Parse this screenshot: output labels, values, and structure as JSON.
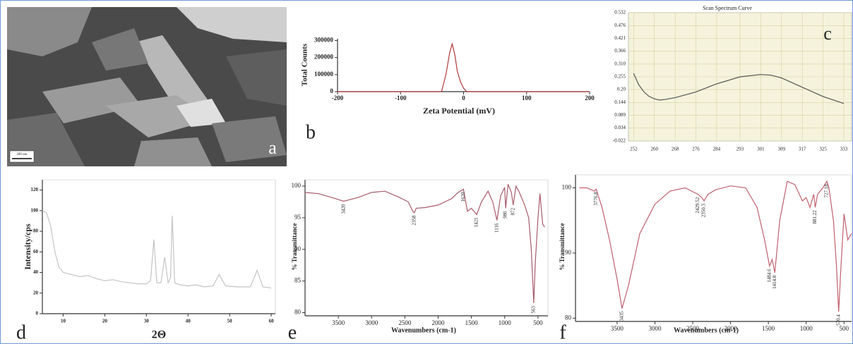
{
  "image_panel": {
    "panel_label": "a",
    "scale_bar": "200 nm"
  },
  "chart_data": [
    {
      "type": "line",
      "panel_label": "b",
      "xlabel": "Zeta Potential (mV)",
      "ylabel": "Total Counts",
      "color": "#b03a3a",
      "x": [
        -200,
        -50,
        -35,
        -28,
        -22,
        -18,
        -14,
        -10,
        -5,
        0,
        5,
        50,
        200
      ],
      "values": [
        0,
        0,
        0,
        100000,
        230000,
        280000,
        220000,
        120000,
        60000,
        20000,
        0,
        0,
        0
      ],
      "xlim": [
        -200,
        200
      ],
      "ylim": [
        0,
        310000
      ],
      "xticks": [
        -200,
        -100,
        0,
        100,
        200
      ],
      "yticks": [
        0,
        100000,
        200000,
        300000
      ],
      "grid": false
    },
    {
      "type": "line",
      "panel_label": "c",
      "title": "Scan Spectrum Curve",
      "color": "#555555",
      "plot_background": "#f5f3dc",
      "grid": true,
      "x": [
        252,
        254,
        256,
        258,
        260,
        262,
        264,
        268,
        276,
        284,
        293,
        301,
        305,
        309,
        317,
        325,
        333
      ],
      "values": [
        0.27,
        0.22,
        0.19,
        0.17,
        0.16,
        0.155,
        0.157,
        0.165,
        0.19,
        0.225,
        0.255,
        0.265,
        0.262,
        0.25,
        0.21,
        0.17,
        0.14
      ],
      "xlim": [
        250,
        336
      ],
      "ylim": [
        -0.022,
        0.532
      ],
      "xticks": [
        252,
        260,
        268,
        276,
        284,
        293,
        301,
        309,
        317,
        325,
        333
      ],
      "yticks": [
        0.532,
        0.476,
        0.421,
        0.366,
        {
          "value": 0.31,
          "label": "0.310"
        },
        0.255,
        {
          "value": 0.2,
          "label": "0.20"
        },
        0.144,
        0.089,
        0.034,
        -0.022
      ]
    },
    {
      "type": "line",
      "panel_label": "d",
      "xlabel": "2Θ",
      "ylabel": "Intensity/cps",
      "color": "#c4c4c4",
      "grid": false,
      "x": [
        5,
        6,
        7,
        8,
        9,
        10,
        12,
        14,
        16,
        18,
        20,
        22,
        24,
        26,
        28,
        30,
        31,
        31.8,
        32.5,
        33.5,
        34.4,
        35.2,
        35.8,
        36.2,
        36.8,
        38,
        40,
        42,
        44,
        46,
        47.5,
        49,
        52,
        55,
        56.6,
        58,
        60
      ],
      "values": [
        100,
        98,
        85,
        60,
        45,
        40,
        38,
        36,
        37,
        34,
        32,
        33,
        31,
        30,
        29,
        29,
        32,
        72,
        30,
        30,
        55,
        30,
        35,
        95,
        30,
        28,
        27,
        28,
        26,
        27,
        38,
        27,
        26,
        26,
        42,
        26,
        25
      ],
      "xlim": [
        5,
        61
      ],
      "ylim": [
        0,
        130
      ],
      "xticks": [
        10,
        20,
        30,
        40,
        50,
        60
      ],
      "yticks": [
        0,
        20,
        40,
        60,
        80,
        100,
        120
      ]
    },
    {
      "type": "line",
      "panel_label": "e",
      "xlabel": "Wavenumbers (cm-1)",
      "ylabel": "% Transmittance",
      "color": "#a85a6a",
      "grid": false,
      "x": [
        4000,
        3800,
        3600,
        3420,
        3200,
        3000,
        2800,
        2600,
        2450,
        2380,
        2358,
        2330,
        2200,
        2000,
        1800,
        1700,
        1620,
        1560,
        1500,
        1421,
        1350,
        1250,
        1180,
        1116,
        1060,
        1000,
        986,
        950,
        900,
        872,
        830,
        780,
        700,
        640,
        600,
        563,
        540,
        500,
        470,
        430,
        400
      ],
      "values": [
        99,
        98.8,
        98.2,
        97.6,
        98.2,
        99,
        99.2,
        98.3,
        97.5,
        96,
        95.8,
        96.5,
        96.6,
        97,
        98,
        99,
        99.5,
        96,
        96.5,
        95.5,
        97.5,
        99.2,
        97.5,
        94.6,
        98.5,
        99.8,
        96.5,
        100.3,
        99,
        97,
        100,
        99,
        97,
        95,
        90,
        81.5,
        88,
        95,
        98.8,
        94,
        93.5
      ],
      "peaks": [
        3420,
        2358,
        1620,
        1421,
        1116,
        986,
        872,
        563
      ],
      "xlim": [
        4000,
        350
      ],
      "ylim": [
        79.5,
        101
      ],
      "xticks": [
        3500,
        3000,
        2500,
        2000,
        1500,
        1000,
        500
      ],
      "yticks": [
        80,
        85,
        90,
        95,
        100
      ]
    },
    {
      "type": "line",
      "panel_label": "f",
      "xlabel": "Wavenumbers (cm-1)",
      "ylabel": "% Transmittance",
      "color": "#c0606e",
      "grid": false,
      "x": [
        4000,
        3900,
        3800,
        3776.8,
        3700,
        3600,
        3500,
        3435,
        3350,
        3200,
        3000,
        2800,
        2600,
        2429.52,
        2380,
        2350.3,
        2300,
        2200,
        2000,
        1800,
        1650,
        1550,
        1484.6,
        1450,
        1414.8,
        1350,
        1250,
        1150,
        1050,
        1000,
        950,
        900,
        881.22,
        850,
        780,
        727.18,
        700,
        640,
        600,
        570.4,
        540,
        500,
        450,
        400
      ],
      "values": [
        100,
        100,
        99.5,
        99.8,
        97,
        92,
        86,
        81.5,
        85,
        93,
        97.5,
        99.5,
        100,
        99,
        98.5,
        98,
        99,
        99.7,
        100.3,
        100,
        97,
        92,
        88,
        89,
        87,
        95,
        101,
        100.5,
        98,
        98.5,
        97,
        99,
        97,
        99,
        100,
        101,
        100,
        95,
        88,
        81,
        88,
        96,
        92,
        93
      ],
      "peaks": [
        3776.8,
        3435,
        2429.52,
        2350.3,
        1484.6,
        1414.8,
        881.22,
        727.18,
        570.4
      ],
      "xlim": [
        4050,
        400
      ],
      "ylim": [
        79.5,
        102
      ],
      "xticks": [
        3500,
        3000,
        2500,
        2000,
        1500,
        1000,
        500
      ],
      "yticks": [
        80,
        90,
        100
      ]
    }
  ]
}
